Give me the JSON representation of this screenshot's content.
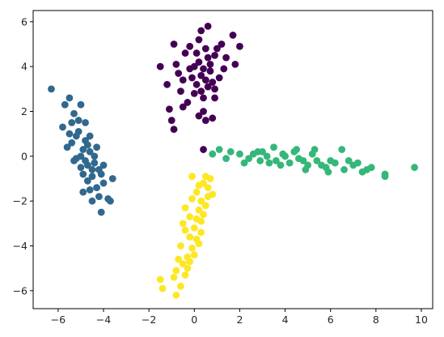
{
  "chart_data": {
    "type": "scatter",
    "title": "",
    "xlabel": "",
    "ylabel": "",
    "xlim": [
      -7.1,
      10.5
    ],
    "ylim": [
      -6.8,
      6.5
    ],
    "xticks": [
      -6,
      -4,
      -2,
      0,
      2,
      4,
      6,
      8,
      10
    ],
    "yticks": [
      -6,
      -4,
      -2,
      0,
      2,
      4,
      6
    ],
    "grid": false,
    "legend": "none",
    "series": [
      {
        "color": "#440154",
        "points": [
          [
            0.3,
            3.6
          ],
          [
            0.6,
            3.1
          ],
          [
            0.2,
            4.2
          ],
          [
            -0.5,
            3.4
          ],
          [
            0.9,
            4.5
          ],
          [
            0.4,
            2.6
          ],
          [
            -0.2,
            3.9
          ],
          [
            0.7,
            3.8
          ],
          [
            0.1,
            3.2
          ],
          [
            0.5,
            4.8
          ],
          [
            -0.8,
            4.1
          ],
          [
            1.1,
            3.5
          ],
          [
            0.3,
            5.6
          ],
          [
            0.6,
            5.8
          ],
          [
            -0.9,
            5.0
          ],
          [
            1.7,
            5.4
          ],
          [
            2.0,
            4.9
          ],
          [
            -1.5,
            4.0
          ],
          [
            1.8,
            4.1
          ],
          [
            -1.1,
            2.1
          ],
          [
            0.2,
            1.8
          ],
          [
            0.8,
            1.7
          ],
          [
            -0.9,
            1.2
          ],
          [
            -1.0,
            1.6
          ],
          [
            0.0,
            2.8
          ],
          [
            0.4,
            2.0
          ],
          [
            1.3,
            3.9
          ],
          [
            -0.4,
            4.6
          ],
          [
            0.9,
            2.6
          ],
          [
            -0.6,
            2.9
          ],
          [
            0.5,
            3.4
          ],
          [
            0.1,
            4.6
          ],
          [
            1.4,
            4.4
          ],
          [
            -1.2,
            3.2
          ],
          [
            0.7,
            4.1
          ],
          [
            -0.3,
            2.4
          ],
          [
            0.2,
            5.2
          ],
          [
            1.0,
            4.8
          ],
          [
            -0.7,
            3.7
          ],
          [
            0.4,
            3.9
          ],
          [
            0.8,
            3.3
          ],
          [
            -0.1,
            3.5
          ],
          [
            0.6,
            4.4
          ],
          [
            1.2,
            5.0
          ],
          [
            -0.5,
            2.2
          ],
          [
            0.3,
            2.9
          ],
          [
            0.0,
            4.0
          ],
          [
            0.9,
            3.0
          ],
          [
            0.5,
            1.6
          ],
          [
            -0.2,
            4.9
          ],
          [
            0.4,
            0.3
          ]
        ]
      },
      {
        "color": "#31688e",
        "points": [
          [
            -6.3,
            3.0
          ],
          [
            -5.5,
            2.6
          ],
          [
            -5.0,
            2.3
          ],
          [
            -5.7,
            2.3
          ],
          [
            -5.3,
            1.9
          ],
          [
            -4.8,
            1.5
          ],
          [
            -5.8,
            1.3
          ],
          [
            -5.1,
            1.1
          ],
          [
            -4.6,
            0.9
          ],
          [
            -5.4,
            0.6
          ],
          [
            -4.9,
            0.3
          ],
          [
            -4.4,
            0.0
          ],
          [
            -5.2,
            -0.1
          ],
          [
            -4.7,
            -0.4
          ],
          [
            -4.2,
            -0.6
          ],
          [
            -5.0,
            -0.5
          ],
          [
            -4.5,
            -0.9
          ],
          [
            -4.0,
            -1.2
          ],
          [
            -4.6,
            -1.5
          ],
          [
            -3.6,
            -1.0
          ],
          [
            -4.2,
            -1.8
          ],
          [
            -4.9,
            -1.6
          ],
          [
            -3.8,
            -1.9
          ],
          [
            -4.5,
            -2.0
          ],
          [
            -4.1,
            -2.5
          ],
          [
            -3.7,
            -2.0
          ],
          [
            -5.6,
            0.4
          ],
          [
            -5.3,
            -0.2
          ],
          [
            -4.8,
            0.7
          ],
          [
            -4.3,
            0.4
          ],
          [
            -4.7,
            -1.1
          ],
          [
            -5.1,
            1.6
          ],
          [
            -4.4,
            -0.3
          ],
          [
            -4.9,
            -0.8
          ],
          [
            -5.5,
            1.0
          ],
          [
            -4.6,
            0.2
          ],
          [
            -4.1,
            -0.8
          ],
          [
            -5.0,
            0.0
          ],
          [
            -4.3,
            -1.4
          ],
          [
            -5.2,
            0.9
          ],
          [
            -4.8,
            -0.2
          ],
          [
            -4.0,
            -0.4
          ],
          [
            -5.4,
            1.5
          ],
          [
            -4.7,
            0.5
          ],
          [
            -4.5,
            -0.6
          ]
        ]
      },
      {
        "color": "#35b779",
        "points": [
          [
            0.8,
            0.1
          ],
          [
            1.1,
            0.3
          ],
          [
            1.6,
            0.2
          ],
          [
            2.0,
            0.1
          ],
          [
            2.4,
            -0.1
          ],
          [
            2.8,
            0.2
          ],
          [
            3.2,
            0.0
          ],
          [
            3.6,
            -0.2
          ],
          [
            3.9,
            0.1
          ],
          [
            4.2,
            -0.3
          ],
          [
            4.6,
            -0.1
          ],
          [
            5.0,
            -0.4
          ],
          [
            5.4,
            -0.2
          ],
          [
            5.8,
            -0.5
          ],
          [
            6.2,
            -0.3
          ],
          [
            6.6,
            -0.6
          ],
          [
            7.0,
            -0.4
          ],
          [
            7.4,
            -0.7
          ],
          [
            7.8,
            -0.5
          ],
          [
            8.4,
            -0.8
          ],
          [
            8.4,
            -0.9
          ],
          [
            9.7,
            -0.5
          ],
          [
            2.2,
            -0.3
          ],
          [
            3.0,
            0.2
          ],
          [
            3.5,
            0.4
          ],
          [
            4.0,
            0.0
          ],
          [
            4.4,
            0.2
          ],
          [
            4.8,
            -0.2
          ],
          [
            5.2,
            0.1
          ],
          [
            5.6,
            -0.4
          ],
          [
            6.0,
            -0.2
          ],
          [
            6.5,
            0.3
          ],
          [
            5.3,
            0.3
          ],
          [
            3.8,
            -0.4
          ],
          [
            2.6,
            0.1
          ],
          [
            7.2,
            -0.3
          ],
          [
            1.4,
            -0.1
          ],
          [
            4.9,
            -0.6
          ],
          [
            6.8,
            -0.2
          ],
          [
            3.3,
            -0.3
          ],
          [
            5.9,
            -0.7
          ],
          [
            7.6,
            -0.6
          ],
          [
            4.5,
            0.3
          ],
          [
            2.9,
            -0.2
          ]
        ]
      },
      {
        "color": "#fde725",
        "points": [
          [
            -0.8,
            -6.2
          ],
          [
            -0.6,
            -5.8
          ],
          [
            -0.4,
            -5.3
          ],
          [
            -0.9,
            -5.4
          ],
          [
            -0.5,
            -4.8
          ],
          [
            -0.3,
            -4.5
          ],
          [
            -0.1,
            -4.1
          ],
          [
            -0.2,
            -3.6
          ],
          [
            0.0,
            -3.2
          ],
          [
            0.1,
            -2.8
          ],
          [
            0.2,
            -2.4
          ],
          [
            0.3,
            -2.0
          ],
          [
            0.1,
            -1.6
          ],
          [
            0.4,
            -1.2
          ],
          [
            0.5,
            -0.9
          ],
          [
            -0.1,
            -0.9
          ],
          [
            -1.5,
            -5.5
          ],
          [
            -1.4,
            -5.9
          ],
          [
            0.7,
            -1.0
          ],
          [
            0.8,
            -1.7
          ],
          [
            -0.6,
            -4.0
          ],
          [
            -0.4,
            -3.3
          ],
          [
            0.2,
            -3.9
          ],
          [
            -0.2,
            -2.7
          ],
          [
            0.4,
            -2.6
          ],
          [
            -0.7,
            -4.6
          ],
          [
            0.6,
            -1.8
          ],
          [
            -0.3,
            -5.0
          ],
          [
            0.0,
            -4.4
          ],
          [
            0.3,
            -3.4
          ],
          [
            -0.5,
            -3.0
          ],
          [
            0.5,
            -2.2
          ],
          [
            -0.1,
            -1.9
          ],
          [
            0.2,
            -1.3
          ],
          [
            -0.8,
            -5.1
          ],
          [
            -0.2,
            -4.7
          ],
          [
            0.1,
            -3.7
          ],
          [
            0.3,
            -2.9
          ],
          [
            -0.4,
            -2.3
          ],
          [
            0.6,
            -1.4
          ]
        ]
      }
    ]
  }
}
